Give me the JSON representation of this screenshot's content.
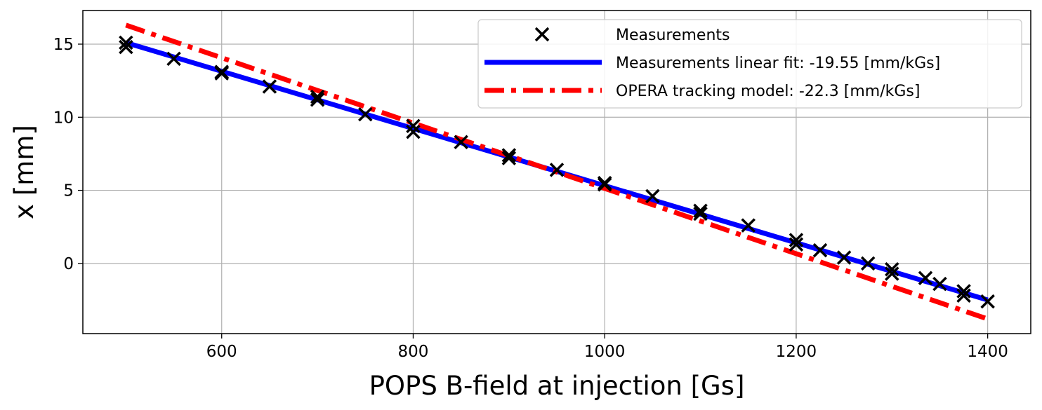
{
  "chart_data": {
    "type": "line",
    "xlabel": "POPS B-field at injection [Gs]",
    "ylabel": "x [mm]",
    "xlim": [
      455,
      1445
    ],
    "ylim": [
      -4.8,
      17.3
    ],
    "x_ticks": [
      600,
      800,
      1000,
      1200,
      1400
    ],
    "y_ticks": [
      0,
      5,
      10,
      15
    ],
    "grid": true,
    "legend_position": "top-right",
    "series": [
      {
        "name": "Measurements",
        "kind": "scatter",
        "marker": "x",
        "color": "#000000",
        "points": [
          [
            500,
            15.1
          ],
          [
            500,
            14.8
          ],
          [
            550,
            14.0
          ],
          [
            600,
            13.1
          ],
          [
            600,
            13.0
          ],
          [
            650,
            12.1
          ],
          [
            700,
            11.4
          ],
          [
            700,
            11.2
          ],
          [
            750,
            10.2
          ],
          [
            800,
            9.4
          ],
          [
            800,
            9.0
          ],
          [
            850,
            8.3
          ],
          [
            900,
            7.4
          ],
          [
            900,
            7.2
          ],
          [
            950,
            6.4
          ],
          [
            1000,
            5.5
          ],
          [
            1000,
            5.4
          ],
          [
            1050,
            4.6
          ],
          [
            1100,
            3.6
          ],
          [
            1100,
            3.4
          ],
          [
            1150,
            2.6
          ],
          [
            1200,
            1.6
          ],
          [
            1200,
            1.3
          ],
          [
            1225,
            0.9
          ],
          [
            1250,
            0.4
          ],
          [
            1275,
            0.0
          ],
          [
            1300,
            -0.4
          ],
          [
            1300,
            -0.7
          ],
          [
            1335,
            -1.0
          ],
          [
            1350,
            -1.4
          ],
          [
            1375,
            -1.9
          ],
          [
            1375,
            -2.2
          ],
          [
            1400,
            -2.6
          ]
        ]
      },
      {
        "name": "Measurements linear fit: -19.55 [mm/kGs]",
        "kind": "line",
        "style": "solid",
        "color": "#0000ff",
        "x": [
          500,
          1400
        ],
        "y": [
          15.1,
          -2.5
        ]
      },
      {
        "name": "OPERA tracking model: -22.3 [mm/kGs]",
        "kind": "line",
        "style": "dashdot",
        "color": "#ff0000",
        "x": [
          500,
          1400
        ],
        "y": [
          16.3,
          -3.8
        ]
      }
    ]
  }
}
